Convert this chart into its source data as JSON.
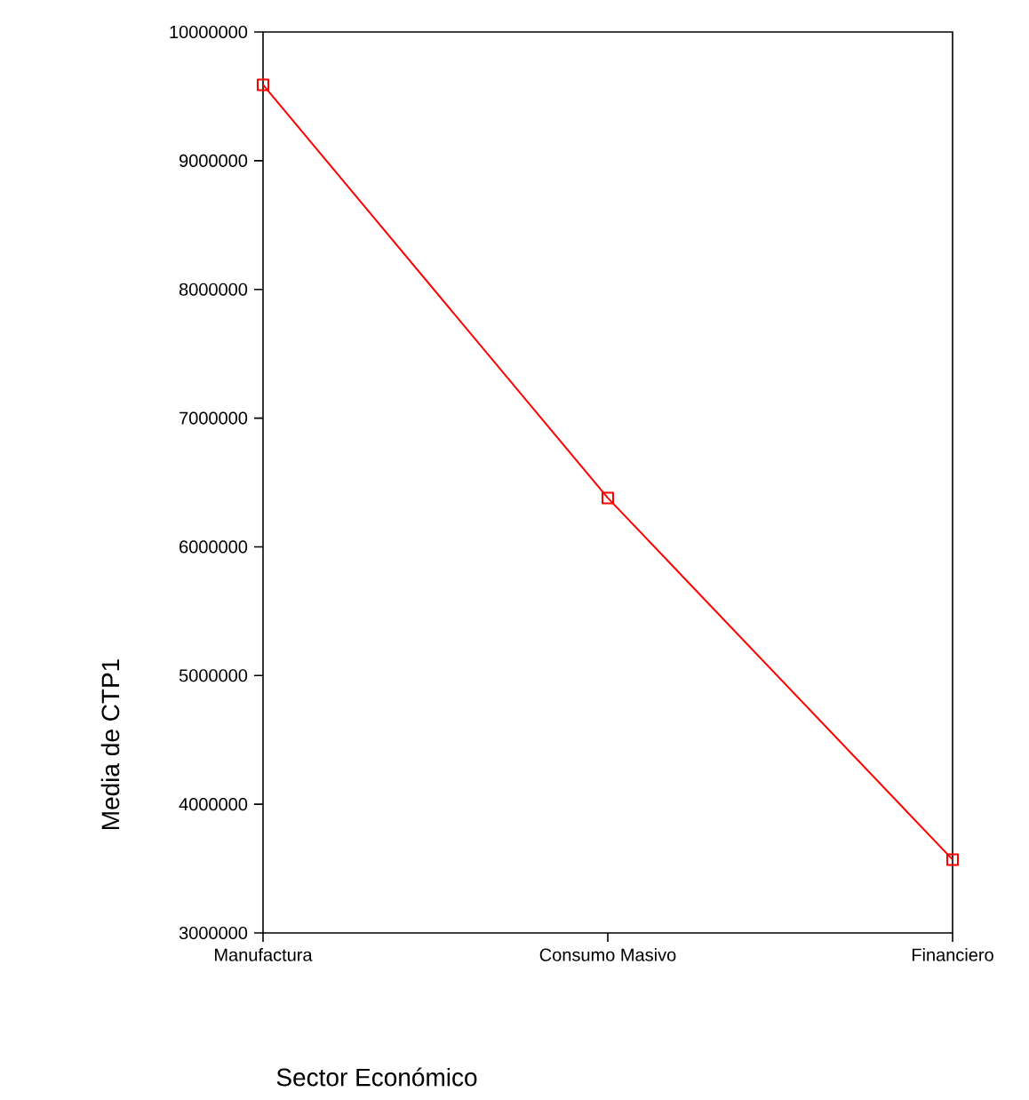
{
  "chart_data": {
    "type": "line",
    "xlabel": "Sector Económico",
    "ylabel": "Media de CTP1",
    "categories": [
      "Manufactura",
      "Consumo Masivo",
      "Financiero"
    ],
    "series": [
      {
        "color": "#ff0000",
        "values": [
          9590000,
          6380000,
          3570000
        ]
      }
    ],
    "ylim": [
      3000000,
      10000000
    ],
    "yticks": [
      3000000,
      4000000,
      5000000,
      6000000,
      7000000,
      8000000,
      9000000,
      10000000
    ],
    "grid": false,
    "marker": "square",
    "line_style": "solid"
  }
}
